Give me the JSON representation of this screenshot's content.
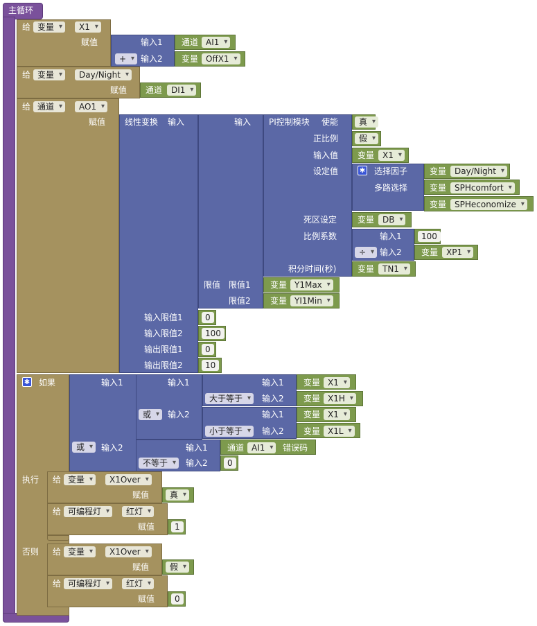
{
  "main_loop": {
    "title": "主循环"
  },
  "kw": {
    "give": "给",
    "assign": "赋值",
    "input": "输入",
    "input1": "输入1",
    "input2": "输入2",
    "var": "变量",
    "channel": "通道",
    "if": "如果",
    "exec": "执行",
    "else": "否则",
    "true": "真",
    "false": "假",
    "or": "或",
    "plus": "+",
    "div": "÷",
    "gte": "大于等于",
    "lte": "小于等于",
    "neq": "不等于",
    "prog_light": "可编程灯",
    "red_light": "红灯",
    "error_code": "错误码"
  },
  "stmt1": {
    "target_type": "变量",
    "target": "X1",
    "ch": "AI1",
    "var": "OffX1"
  },
  "stmt2": {
    "target_type": "变量",
    "target": "Day/Night",
    "ch": "DI1"
  },
  "stmt3": {
    "target_type": "通道",
    "target": "AO1",
    "linear": "线性变换",
    "pi": "PI控制模块",
    "enable": "使能",
    "positive": "正比例",
    "input_value": "输入值",
    "input_var": "X1",
    "setpoint": "设定值",
    "select_factor": "选择因子",
    "select_var": "Day/Night",
    "multi": "多路选择",
    "comfort": "SPHcomfort",
    "economize": "SPHeconomize",
    "deadband": "死区设定",
    "db_var": "DB",
    "kp": "比例系数",
    "kp_value": "100",
    "kp_var": "XP1",
    "ti": "积分时间(秒)",
    "ti_var": "TN1",
    "limit": "限值",
    "limit1": "限值1",
    "limit2": "限值2",
    "y1max": "Y1Max",
    "y1min": "YI1Min",
    "in_lim1": "输入限值1",
    "in_lim2": "输入限值2",
    "out_lim1": "输出限值1",
    "out_lim2": "输出限值2",
    "in_lim1_v": "0",
    "in_lim2_v": "100",
    "out_lim1_v": "0",
    "out_lim2_v": "10"
  },
  "cond": {
    "x1": "X1",
    "x1h": "X1H",
    "x1l": "X1L",
    "ai": "AI1",
    "zero": "0"
  },
  "exec_block": {
    "var": "X1Over",
    "value": "1"
  },
  "else_block": {
    "var": "X1Over",
    "value": "0"
  }
}
